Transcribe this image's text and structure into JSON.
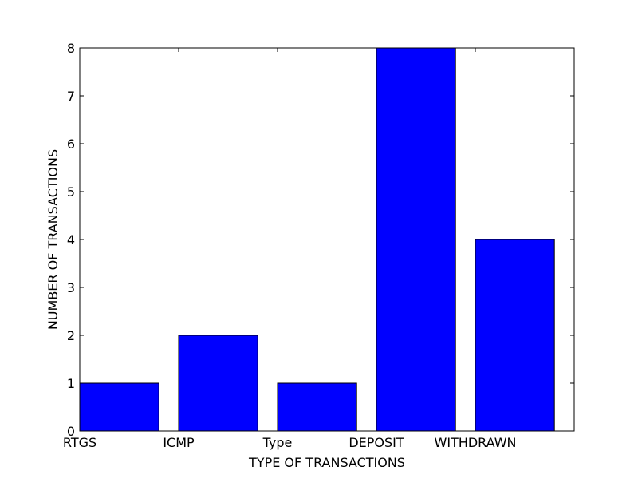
{
  "chart_data": {
    "type": "bar",
    "title": "",
    "xlabel": "TYPE OF TRANSACTIONS",
    "ylabel": "NUMBER OF TRANSACTIONS",
    "categories": [
      "RTGS",
      "ICMP",
      "Type",
      "DEPOSIT",
      "WITHDRAWN"
    ],
    "values": [
      1,
      2,
      1,
      8,
      4
    ],
    "ylim": [
      0,
      8
    ],
    "yticks": [
      "0",
      "1",
      "2",
      "3",
      "4",
      "5",
      "6",
      "7",
      "8"
    ],
    "grid": false,
    "legend": "none",
    "bar_color": "#0000ff",
    "edge_color": "#000000"
  }
}
